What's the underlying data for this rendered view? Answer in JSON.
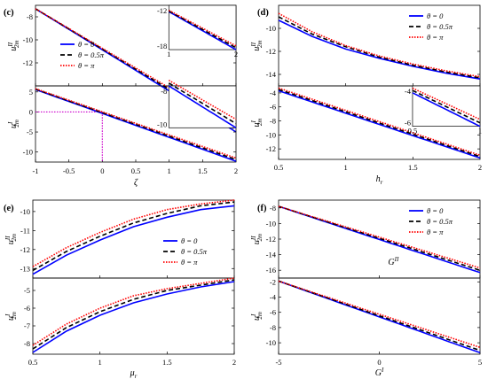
{
  "colors": {
    "theta0": "#0000ff",
    "theta05": "#000000",
    "thetapi": "#ff0000",
    "guide": "#cc00cc"
  },
  "legend": [
    "θ = 0",
    "θ = 0.5π",
    "θ = π"
  ],
  "chart_data": [
    {
      "panel": "(c)",
      "type": "line",
      "xlabel": "ζ",
      "xlim": [
        -1,
        2
      ],
      "xticks": [
        -1,
        -0.5,
        0,
        0.5,
        1,
        1.5,
        2
      ],
      "xtick_labels": [
        "-1",
        "-0.5",
        "0",
        "0.5",
        "1",
        "1.5",
        "2"
      ],
      "legend_position": "left, upper subplot",
      "subplots": [
        {
          "ylabel": "u^II_2m",
          "ylim": [
            -14,
            -7
          ],
          "yticks": [
            -8,
            -10,
            -12
          ],
          "ytick_labels": [
            "-8",
            "-10",
            "-12"
          ],
          "x": [
            -1,
            2
          ],
          "series": [
            {
              "name": "θ = 0",
              "values": [
                -7.3,
                -18.0
              ]
            },
            {
              "name": "θ = 0.5π",
              "values": [
                -7.3,
                -17.8
              ]
            },
            {
              "name": "θ = π",
              "values": [
                -7.3,
                -17.6
              ]
            }
          ],
          "inset": {
            "xlim": [
              1,
              2
            ],
            "ylim": [
              -18,
              -11
            ],
            "xtick_labels": [
              "1",
              "2"
            ],
            "ytick_labels": [
              "-12",
              "-18"
            ],
            "x": [
              1,
              2
            ],
            "series": [
              [
                -12.0,
                -18.0
              ],
              [
                -11.9,
                -17.7
              ],
              [
                -11.8,
                -17.4
              ]
            ]
          }
        },
        {
          "ylabel": "u^I_2m",
          "ylim": [
            -12.5,
            6.5
          ],
          "yticks": [
            5,
            0,
            -5,
            -10
          ],
          "ytick_labels": [
            "5",
            "0",
            "-5",
            "-10"
          ],
          "x": [
            -1,
            2
          ],
          "series": [
            {
              "name": "θ = 0",
              "values": [
                5.6,
                -12.3
              ]
            },
            {
              "name": "θ = 0.5π",
              "values": [
                5.7,
                -11.9
              ]
            },
            {
              "name": "θ = π",
              "values": [
                5.8,
                -11.5
              ]
            }
          ],
          "guide": {
            "x": 0,
            "y": 0
          },
          "inset": {
            "xlim": [
              1,
              2
            ],
            "ylim": [
              -10,
              -7
            ],
            "xtick_labels": [],
            "ytick_labels": [
              "-8",
              "-10"
            ],
            "x": [
              1,
              2
            ],
            "series": [
              [
                -7.0,
                -10.0
              ],
              [
                -6.8,
                -9.7
              ],
              [
                -6.6,
                -9.4
              ]
            ]
          }
        }
      ]
    },
    {
      "panel": "(d)",
      "type": "line",
      "xlabel": "h_r",
      "xlim": [
        0.5,
        2
      ],
      "xticks": [
        0.5,
        1,
        1.5,
        2
      ],
      "xtick_labels": [
        "0.5",
        "1",
        "1.5",
        "2"
      ],
      "legend_position": "top-right, upper subplot",
      "subplots": [
        {
          "ylabel": "u^II_2m",
          "ylim": [
            -15,
            -8
          ],
          "yticks": [
            -10,
            -12,
            -14
          ],
          "ytick_labels": [
            "-10",
            "-12",
            "-14"
          ],
          "x": [
            0.5,
            0.75,
            1,
            1.25,
            1.5,
            1.75,
            2
          ],
          "series": [
            {
              "name": "θ = 0",
              "values": [
                -9.3,
                -10.7,
                -11.8,
                -12.6,
                -13.3,
                -13.9,
                -14.4
              ]
            },
            {
              "name": "θ = 0.5π",
              "values": [
                -9.0,
                -10.5,
                -11.6,
                -12.5,
                -13.2,
                -13.8,
                -14.3
              ]
            },
            {
              "name": "θ = π",
              "values": [
                -8.7,
                -10.3,
                -11.5,
                -12.4,
                -13.1,
                -13.7,
                -14.2
              ]
            }
          ]
        },
        {
          "ylabel": "u^I_2m",
          "ylim": [
            -13.5,
            -3
          ],
          "yticks": [
            -4,
            -6,
            -8,
            -10,
            -12
          ],
          "ytick_labels": [
            "-4",
            "-6",
            "-8",
            "-10",
            "-12"
          ],
          "x": [
            0.5,
            2
          ],
          "series": [
            {
              "name": "θ = 0",
              "values": [
                -3.7,
                -13.3
              ]
            },
            {
              "name": "θ = 0.5π",
              "values": [
                -3.5,
                -13.1
              ]
            },
            {
              "name": "θ = π",
              "values": [
                -3.3,
                -12.9
              ]
            }
          ],
          "inset": {
            "xlim": [
              0.5,
              1
            ],
            "ylim": [
              -6.5,
              -3
            ],
            "xtick_labels": [
              "0.5",
              "1"
            ],
            "ytick_labels": [
              "-4",
              "-6"
            ],
            "x": [
              0.5,
              1
            ],
            "series": [
              [
                -3.6,
                -6.5
              ],
              [
                -3.4,
                -6.2
              ],
              [
                -3.2,
                -5.9
              ]
            ]
          }
        }
      ]
    },
    {
      "panel": "(e)",
      "type": "line",
      "xlabel": "μ_r",
      "xlim": [
        0.5,
        2
      ],
      "xticks": [
        0.5,
        1,
        1.5,
        2
      ],
      "xtick_labels": [
        "0.5",
        "1",
        "1.5",
        "2"
      ],
      "legend_position": "right, upper subplot",
      "subplots": [
        {
          "ylabel": "u^II_2m",
          "ylim": [
            -13.5,
            -9.4
          ],
          "yticks": [
            -10,
            -11,
            -12,
            -13
          ],
          "ytick_labels": [
            "-10",
            "-11",
            "-12",
            "-13"
          ],
          "x": [
            0.5,
            0.75,
            1,
            1.25,
            1.5,
            1.75,
            2
          ],
          "series": [
            {
              "name": "θ = 0",
              "values": [
                -13.3,
                -12.3,
                -11.5,
                -10.8,
                -10.3,
                -9.9,
                -9.7
              ]
            },
            {
              "name": "θ = 0.5π",
              "values": [
                -13.1,
                -12.1,
                -11.3,
                -10.6,
                -10.1,
                -9.7,
                -9.5
              ]
            },
            {
              "name": "θ = π",
              "values": [
                -12.9,
                -11.9,
                -11.1,
                -10.4,
                -9.9,
                -9.6,
                -9.4
              ]
            }
          ]
        },
        {
          "ylabel": "u^I_2m",
          "ylim": [
            -8.6,
            -4.3
          ],
          "yticks": [
            -5,
            -6,
            -7,
            -8
          ],
          "ytick_labels": [
            "-5",
            "-6",
            "-7",
            "-8"
          ],
          "x": [
            0.5,
            0.75,
            1,
            1.25,
            1.5,
            1.75,
            2
          ],
          "series": [
            {
              "name": "θ = 0",
              "values": [
                -8.5,
                -7.3,
                -6.4,
                -5.7,
                -5.2,
                -4.8,
                -4.5
              ]
            },
            {
              "name": "θ = 0.5π",
              "values": [
                -8.3,
                -7.1,
                -6.2,
                -5.5,
                -5.0,
                -4.7,
                -4.4
              ]
            },
            {
              "name": "θ = π",
              "values": [
                -8.1,
                -6.9,
                -6.0,
                -5.3,
                -4.9,
                -4.6,
                -4.3
              ]
            }
          ]
        }
      ]
    },
    {
      "panel": "(f)",
      "type": "line",
      "xlabel": "G^I",
      "xlim": [
        -5,
        5
      ],
      "xticks": [
        -5,
        0,
        5
      ],
      "xtick_labels": [
        "-5",
        "0",
        "5"
      ],
      "legend_position": "top-right, upper subplot",
      "subplots": [
        {
          "ylabel": "u^II_2m",
          "ylim": [
            -17,
            -7
          ],
          "yticks": [
            -8,
            -10,
            -12,
            -14,
            -16
          ],
          "ytick_labels": [
            "-8",
            "-10",
            "-12",
            "-14",
            "-16"
          ],
          "x": [
            -5,
            5
          ],
          "series": [
            {
              "name": "θ = 0",
              "values": [
                -7.8,
                -16.3
              ]
            },
            {
              "name": "θ = 0.5π",
              "values": [
                -7.8,
                -16.0
              ]
            },
            {
              "name": "θ = π",
              "values": [
                -7.8,
                -15.7
              ]
            }
          ],
          "annotation": "G^II"
        },
        {
          "ylabel": "u^I_2m",
          "ylim": [
            -11.5,
            -1.5
          ],
          "yticks": [
            -2,
            -4,
            -6,
            -8,
            -10
          ],
          "ytick_labels": [
            "-2",
            "-4",
            "-6",
            "-8",
            "-10"
          ],
          "x": [
            -5,
            5
          ],
          "series": [
            {
              "name": "θ = 0",
              "values": [
                -1.9,
                -11.3
              ]
            },
            {
              "name": "θ = 0.5π",
              "values": [
                -1.9,
                -11.0
              ]
            },
            {
              "name": "θ = π",
              "values": [
                -1.9,
                -10.6
              ]
            }
          ]
        }
      ]
    }
  ]
}
